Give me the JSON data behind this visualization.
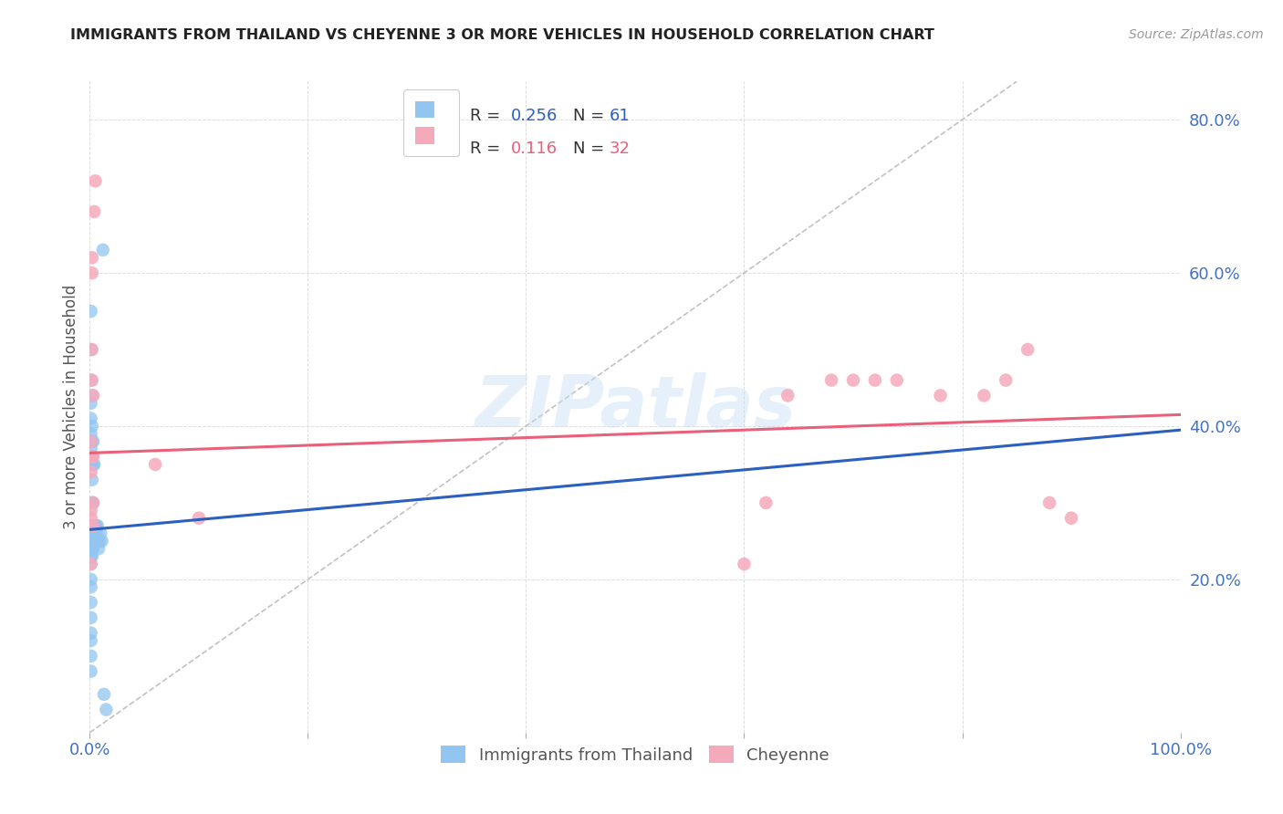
{
  "title": "IMMIGRANTS FROM THAILAND VS CHEYENNE 3 OR MORE VEHICLES IN HOUSEHOLD CORRELATION CHART",
  "source": "Source: ZipAtlas.com",
  "ylabel": "3 or more Vehicles in Household",
  "watermark": "ZIPatlas",
  "legend_blue_R": "0.256",
  "legend_blue_N": "61",
  "legend_pink_R": "0.116",
  "legend_pink_N": "32",
  "blue_color": "#92C5F0",
  "pink_color": "#F5AABB",
  "blue_line_color": "#2B5FC0",
  "pink_line_color": "#E8607A",
  "diag_color": "#BBBBBB",
  "grid_color": "#DDDDDD",
  "axis_label_color": "#4472C4",
  "title_color": "#222222",
  "source_color": "#999999",
  "ylabel_color": "#555555",
  "blue_x": [
    0.001,
    0.001,
    0.001,
    0.001,
    0.001,
    0.001,
    0.001,
    0.001,
    0.001,
    0.001,
    0.001,
    0.001,
    0.001,
    0.001,
    0.001,
    0.001,
    0.001,
    0.001,
    0.001,
    0.001,
    0.001,
    0.001,
    0.001,
    0.001,
    0.002,
    0.002,
    0.002,
    0.002,
    0.002,
    0.002,
    0.002,
    0.002,
    0.002,
    0.002,
    0.002,
    0.002,
    0.003,
    0.003,
    0.003,
    0.003,
    0.003,
    0.003,
    0.003,
    0.004,
    0.004,
    0.004,
    0.004,
    0.005,
    0.005,
    0.005,
    0.006,
    0.006,
    0.007,
    0.007,
    0.008,
    0.009,
    0.01,
    0.011,
    0.012,
    0.013,
    0.015
  ],
  "blue_y": [
    0.27,
    0.26,
    0.26,
    0.255,
    0.25,
    0.24,
    0.23,
    0.22,
    0.2,
    0.19,
    0.17,
    0.15,
    0.13,
    0.12,
    0.1,
    0.08,
    0.35,
    0.37,
    0.39,
    0.41,
    0.43,
    0.46,
    0.5,
    0.55,
    0.27,
    0.26,
    0.26,
    0.25,
    0.24,
    0.23,
    0.3,
    0.33,
    0.36,
    0.38,
    0.4,
    0.44,
    0.27,
    0.26,
    0.25,
    0.24,
    0.3,
    0.35,
    0.38,
    0.27,
    0.26,
    0.25,
    0.35,
    0.27,
    0.26,
    0.25,
    0.27,
    0.26,
    0.27,
    0.25,
    0.24,
    0.25,
    0.26,
    0.25,
    0.63,
    0.05,
    0.03
  ],
  "pink_x": [
    0.001,
    0.001,
    0.001,
    0.001,
    0.001,
    0.001,
    0.002,
    0.002,
    0.002,
    0.002,
    0.002,
    0.003,
    0.003,
    0.003,
    0.003,
    0.004,
    0.005,
    0.06,
    0.1,
    0.6,
    0.62,
    0.64,
    0.68,
    0.7,
    0.72,
    0.74,
    0.78,
    0.82,
    0.84,
    0.86,
    0.88,
    0.9
  ],
  "pink_y": [
    0.38,
    0.36,
    0.34,
    0.29,
    0.28,
    0.22,
    0.6,
    0.62,
    0.5,
    0.46,
    0.36,
    0.44,
    0.36,
    0.3,
    0.27,
    0.68,
    0.72,
    0.35,
    0.28,
    0.22,
    0.3,
    0.44,
    0.46,
    0.46,
    0.46,
    0.46,
    0.44,
    0.44,
    0.46,
    0.5,
    0.3,
    0.28
  ],
  "blue_line_x": [
    0.0,
    1.0
  ],
  "blue_line_y": [
    0.265,
    0.395
  ],
  "pink_line_x": [
    0.0,
    1.0
  ],
  "pink_line_y": [
    0.365,
    0.415
  ],
  "diag_line_x": [
    0.0,
    0.85
  ],
  "diag_line_y": [
    0.0,
    0.85
  ],
  "xlim": [
    0.0,
    1.0
  ],
  "ylim": [
    0.0,
    0.85
  ],
  "xticks": [
    0.0,
    0.2,
    0.4,
    0.6,
    0.8,
    1.0
  ],
  "xticklabels": [
    "0.0%",
    "",
    "",
    "",
    "",
    "100.0%"
  ],
  "yticks": [
    0.0,
    0.2,
    0.4,
    0.6,
    0.8
  ],
  "yticklabels": [
    "",
    "20.0%",
    "40.0%",
    "60.0%",
    "80.0%"
  ],
  "figsize": [
    14.06,
    8.92
  ],
  "dpi": 100
}
